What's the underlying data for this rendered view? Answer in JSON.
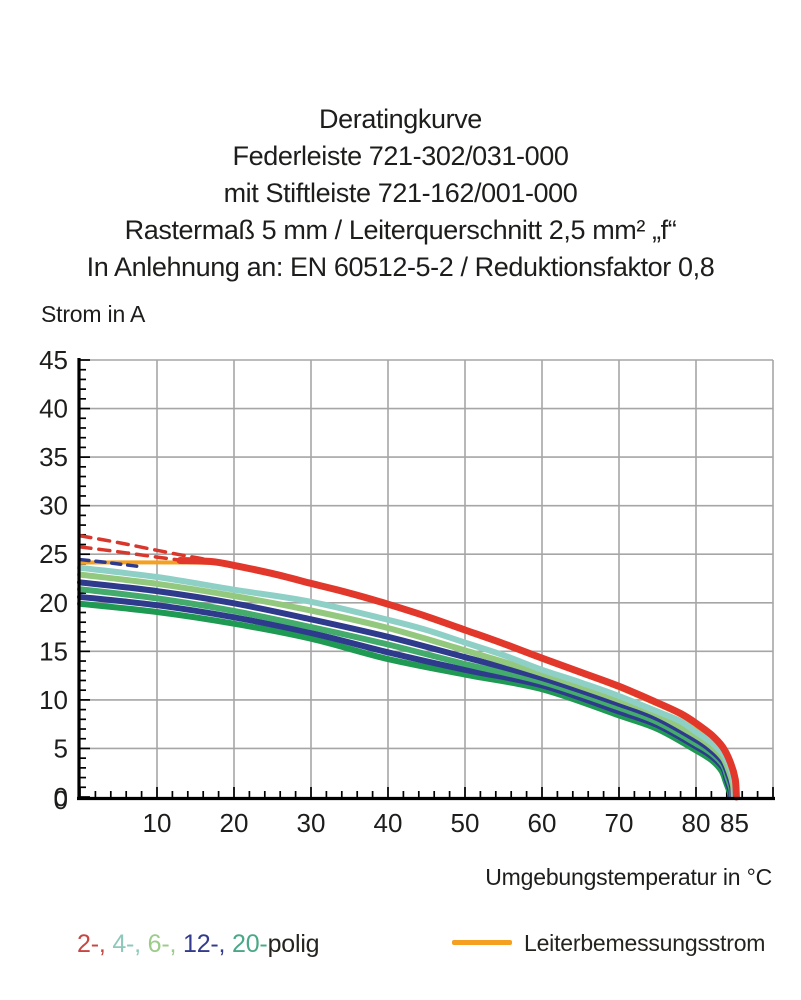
{
  "header": {
    "lines": [
      "Deratingkurve",
      "Federleiste 721-302/031-000",
      "mit Stiftleiste 721-162/001-000",
      "Rastermaß 5 mm / Leiterquerschnitt 2,5 mm² „f“",
      "In Anlehnung an: EN 60512-5-2 / Reduktionsfaktor 0,8"
    ]
  },
  "colors": {
    "grid": "#a6a6a6",
    "axis": "#000000",
    "text": "#1d1d1b",
    "red": "#e2382c",
    "red_dashed": "#d8372b",
    "cyan": "#8ed0c6",
    "light_green": "#93c97e",
    "navy": "#2e3a8c",
    "medium_green": "#43ab6c",
    "dark_green": "#1f9a52",
    "orange": "#f5a021"
  },
  "chart_data": {
    "type": "line",
    "title": "Deratingkurve Federleiste 721-302/031-000 mit Stiftleiste 721-162/001-000",
    "xlabel": "Umgebungstemperatur in °C",
    "ylabel": "Strom in A",
    "xlim": [
      0,
      90
    ],
    "ylim": [
      0,
      45
    ],
    "grid": true,
    "x_ticks": [
      10,
      20,
      30,
      40,
      50,
      60,
      70,
      80,
      85
    ],
    "y_ticks": [
      0,
      5,
      10,
      15,
      20,
      25,
      30,
      35,
      40,
      45
    ],
    "x_gridlines": [
      10,
      20,
      30,
      40,
      50,
      60,
      70,
      80,
      90
    ],
    "y_gridlines": [
      5,
      10,
      15,
      20,
      25,
      30,
      35,
      40,
      45
    ],
    "x_minor_step": 2,
    "y_minor_step": 1,
    "series": [
      {
        "name": "leiterbemessungsstrom",
        "color": "#f5a021",
        "width": 4,
        "dash": null,
        "points": [
          [
            0,
            24.15
          ],
          [
            14,
            24.15
          ],
          [
            18,
            24.05
          ],
          [
            20,
            23.8
          ],
          [
            25,
            22.95
          ],
          [
            30,
            21.95
          ],
          [
            35,
            20.95
          ],
          [
            40,
            19.8
          ],
          [
            45,
            18.5
          ],
          [
            50,
            17.05
          ],
          [
            55,
            15.65
          ],
          [
            60,
            14.15
          ],
          [
            65,
            12.7
          ],
          [
            70,
            11.2
          ],
          [
            75,
            9.5
          ],
          [
            78,
            8.4
          ],
          [
            80,
            7.3
          ],
          [
            82,
            6.1
          ],
          [
            83.5,
            4.8
          ],
          [
            84.4,
            3.4
          ],
          [
            85,
            1.6
          ],
          [
            85.1,
            0
          ]
        ]
      },
      {
        "name": "2-polig-dashed-upper",
        "color": "#d8372b",
        "width": 3.5,
        "dash": "11 8",
        "points": [
          [
            0,
            26.9
          ],
          [
            5,
            26.2
          ],
          [
            10,
            25.4
          ],
          [
            14,
            24.8
          ],
          [
            18,
            24.25
          ]
        ]
      },
      {
        "name": "2-polig-dashed-lower",
        "color": "#d8372b",
        "width": 3.5,
        "dash": "11 8",
        "points": [
          [
            0,
            25.75
          ],
          [
            5,
            25.25
          ],
          [
            10,
            24.7
          ],
          [
            14,
            24.3
          ]
        ]
      },
      {
        "name": "12-polig-dashed",
        "color": "#2e3a8c",
        "width": 3.5,
        "dash": "9 7",
        "points": [
          [
            0,
            24.45
          ],
          [
            4,
            24.1
          ],
          [
            8,
            23.7
          ]
        ]
      },
      {
        "name": "20-polig-lower",
        "color": "#1f9a52",
        "width": 6,
        "dash": null,
        "points": [
          [
            0,
            19.9
          ],
          [
            10,
            19.05
          ],
          [
            20,
            17.85
          ],
          [
            30,
            16.3
          ],
          [
            40,
            14.2
          ],
          [
            50,
            12.6
          ],
          [
            60,
            11.1
          ],
          [
            70,
            8.4
          ],
          [
            75,
            7.0
          ],
          [
            80,
            4.8
          ],
          [
            82,
            3.8
          ],
          [
            83.3,
            2.7
          ],
          [
            83.9,
            1.5
          ],
          [
            84.4,
            0.4
          ],
          [
            84.45,
            0
          ]
        ]
      },
      {
        "name": "12-polig-lower",
        "color": "#2e3a8c",
        "width": 6,
        "dash": null,
        "points": [
          [
            0,
            20.6
          ],
          [
            10,
            19.75
          ],
          [
            20,
            18.5
          ],
          [
            30,
            16.9
          ],
          [
            40,
            14.9
          ],
          [
            50,
            13.1
          ],
          [
            60,
            11.5
          ],
          [
            70,
            8.8
          ],
          [
            75,
            7.4
          ],
          [
            80,
            5.2
          ],
          [
            82,
            4.2
          ],
          [
            83.5,
            3.0
          ],
          [
            84,
            1.8
          ],
          [
            84.5,
            0.6
          ],
          [
            84.55,
            0
          ]
        ]
      },
      {
        "name": "20-polig-upper",
        "color": "#43ab6c",
        "width": 6,
        "dash": null,
        "points": [
          [
            0,
            21.4
          ],
          [
            10,
            20.45
          ],
          [
            20,
            19.15
          ],
          [
            30,
            17.5
          ],
          [
            40,
            15.7
          ],
          [
            50,
            13.7
          ],
          [
            60,
            11.85
          ],
          [
            70,
            9.2
          ],
          [
            75,
            7.7
          ],
          [
            80,
            5.5
          ],
          [
            82,
            4.5
          ],
          [
            83.5,
            3.3
          ],
          [
            84.1,
            2.0
          ],
          [
            84.6,
            0.8
          ],
          [
            84.65,
            0
          ]
        ]
      },
      {
        "name": "12-polig-upper",
        "color": "#2e3a8c",
        "width": 6,
        "dash": null,
        "points": [
          [
            0,
            22.1
          ],
          [
            10,
            21.2
          ],
          [
            20,
            19.95
          ],
          [
            30,
            18.3
          ],
          [
            40,
            16.5
          ],
          [
            50,
            14.4
          ],
          [
            60,
            12.25
          ],
          [
            70,
            9.6
          ],
          [
            75,
            8.1
          ],
          [
            80,
            5.9
          ],
          [
            82,
            4.8
          ],
          [
            83.5,
            3.6
          ],
          [
            84.2,
            2.3
          ],
          [
            84.7,
            1.0
          ],
          [
            84.75,
            0
          ]
        ]
      },
      {
        "name": "6-polig",
        "color": "#93c97e",
        "width": 6,
        "dash": null,
        "points": [
          [
            0,
            22.9
          ],
          [
            10,
            21.95
          ],
          [
            20,
            20.7
          ],
          [
            30,
            19.2
          ],
          [
            40,
            17.4
          ],
          [
            50,
            15.1
          ],
          [
            60,
            12.7
          ],
          [
            70,
            10.0
          ],
          [
            75,
            8.5
          ],
          [
            80,
            6.3
          ],
          [
            82,
            5.2
          ],
          [
            83.5,
            4.0
          ],
          [
            84.3,
            2.6
          ],
          [
            84.8,
            1.2
          ],
          [
            84.9,
            0
          ]
        ]
      },
      {
        "name": "4-polig",
        "color": "#8ed0c6",
        "width": 6,
        "dash": null,
        "points": [
          [
            0,
            23.6
          ],
          [
            10,
            22.65
          ],
          [
            20,
            21.35
          ],
          [
            30,
            20.1
          ],
          [
            40,
            18.25
          ],
          [
            45,
            17.2
          ],
          [
            50,
            15.9
          ],
          [
            55,
            14.6
          ],
          [
            60,
            13.1
          ],
          [
            65,
            11.8
          ],
          [
            70,
            10.4
          ],
          [
            75,
            8.8
          ],
          [
            78,
            7.8
          ],
          [
            80,
            6.7
          ],
          [
            82,
            5.6
          ],
          [
            83.5,
            4.4
          ],
          [
            84.4,
            3.0
          ],
          [
            84.9,
            1.5
          ],
          [
            85,
            0
          ]
        ]
      },
      {
        "name": "2-polig",
        "color": "#e2382c",
        "width": 7,
        "dash": null,
        "points": [
          [
            13,
            24.35
          ],
          [
            17,
            24.25
          ],
          [
            20,
            23.85
          ],
          [
            25,
            23.0
          ],
          [
            30,
            22.0
          ],
          [
            35,
            21.0
          ],
          [
            40,
            19.85
          ],
          [
            45,
            18.6
          ],
          [
            50,
            17.2
          ],
          [
            55,
            15.8
          ],
          [
            60,
            14.3
          ],
          [
            65,
            12.85
          ],
          [
            70,
            11.4
          ],
          [
            75,
            9.7
          ],
          [
            78,
            8.6
          ],
          [
            80,
            7.6
          ],
          [
            82,
            6.4
          ],
          [
            83.5,
            5.1
          ],
          [
            84.5,
            3.5
          ],
          [
            85.1,
            1.8
          ],
          [
            85.25,
            0
          ]
        ]
      }
    ]
  },
  "legend": {
    "poles": [
      {
        "label": "2-",
        "color": "#c94540"
      },
      {
        "label": "4-",
        "color": "#8ec7bc"
      },
      {
        "label": "6-",
        "color": "#9ccb8a"
      },
      {
        "label": "12-",
        "color": "#333b8e"
      },
      {
        "label": "20-",
        "color": "#49a886"
      }
    ],
    "separator": ", ",
    "suffix": "polig",
    "rated": {
      "label": "Leiterbemessungsstrom",
      "color": "#f5a021"
    }
  }
}
